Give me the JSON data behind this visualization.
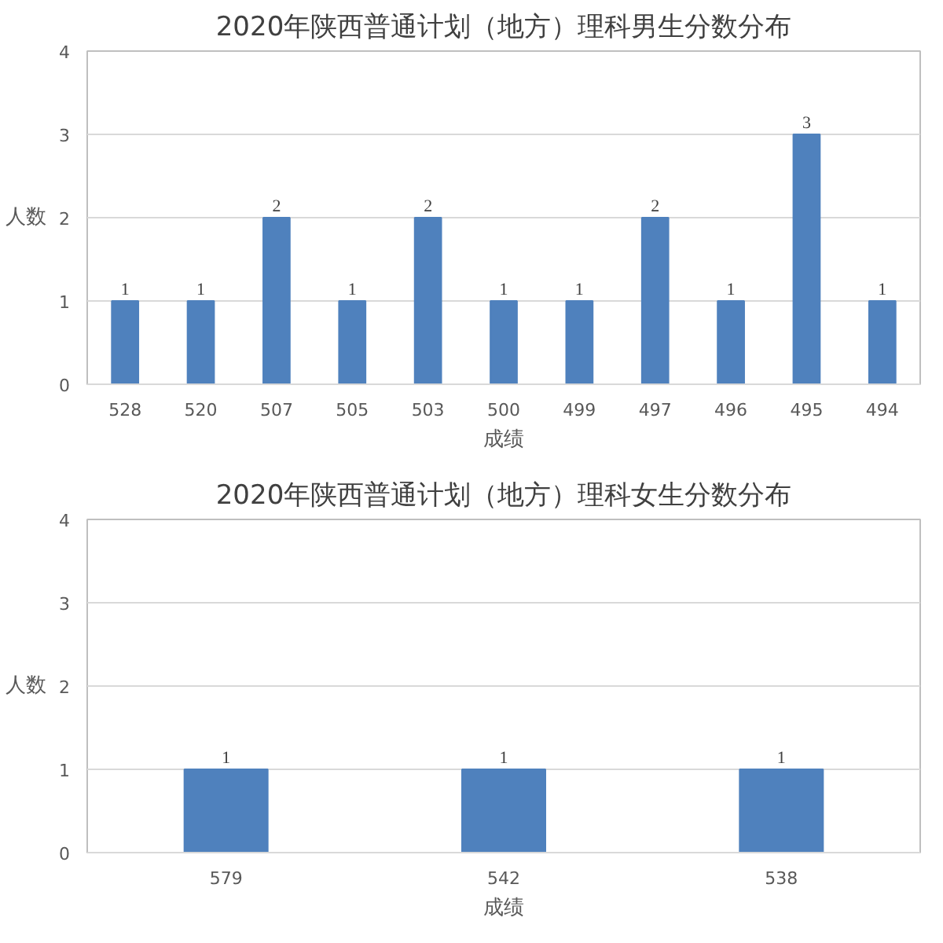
{
  "chart_data": [
    {
      "type": "bar",
      "title": "2020年陕西普通计划（地方）理科男生分数分布",
      "xlabel": "成绩",
      "ylabel": "人数",
      "categories": [
        "528",
        "520",
        "507",
        "505",
        "503",
        "500",
        "499",
        "497",
        "496",
        "495",
        "494"
      ],
      "values": [
        1,
        1,
        2,
        1,
        2,
        1,
        1,
        2,
        1,
        3,
        1
      ],
      "color": "#4f81bd",
      "ylim": [
        0,
        4
      ],
      "yticks": [
        0,
        1,
        2,
        3,
        4
      ],
      "grid": "y",
      "data_labels": true
    },
    {
      "type": "bar",
      "title": "2020年陕西普通计划（地方）理科女生分数分布",
      "xlabel": "成绩",
      "ylabel": "人数",
      "categories": [
        "579",
        "542",
        "538"
      ],
      "values": [
        1,
        1,
        1
      ],
      "color": "#4f81bd",
      "ylim": [
        0,
        4
      ],
      "yticks": [
        0,
        1,
        2,
        3,
        4
      ],
      "grid": "y",
      "data_labels": true
    }
  ]
}
